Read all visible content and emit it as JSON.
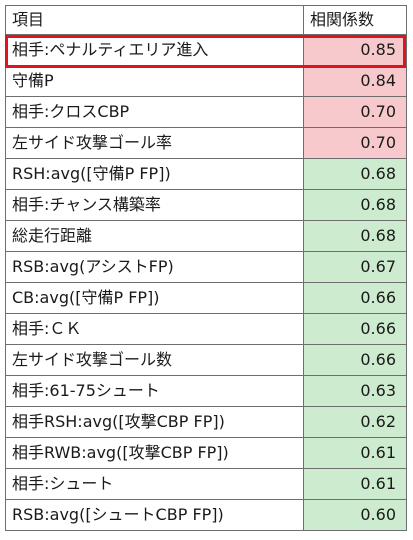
{
  "header": {
    "item": "項目",
    "value": "相関係数"
  },
  "rows": [
    {
      "item": "相手:ペナルティエリア進入",
      "value": "0.85",
      "level": "high"
    },
    {
      "item": "守備P",
      "value": "0.84",
      "level": "high"
    },
    {
      "item": "相手:クロスCBP",
      "value": "0.70",
      "level": "high"
    },
    {
      "item": "左サイド攻撃ゴール率",
      "value": "0.70",
      "level": "high"
    },
    {
      "item": "RSH:avg([守備P FP])",
      "value": "0.68",
      "level": "mid"
    },
    {
      "item": "相手:チャンス構築率",
      "value": "0.68",
      "level": "mid"
    },
    {
      "item": "総走行距離",
      "value": "0.68",
      "level": "mid"
    },
    {
      "item": "RSB:avg(アシストFP)",
      "value": "0.67",
      "level": "mid"
    },
    {
      "item": "CB:avg([守備P FP])",
      "value": "0.66",
      "level": "mid"
    },
    {
      "item": "相手:ＣＫ",
      "value": "0.66",
      "level": "mid"
    },
    {
      "item": "左サイド攻撃ゴール数",
      "value": "0.66",
      "level": "mid"
    },
    {
      "item": "相手:61-75シュート",
      "value": "0.63",
      "level": "mid"
    },
    {
      "item": "相手RSH:avg([攻撃CBP FP])",
      "value": "0.62",
      "level": "mid"
    },
    {
      "item": "相手RWB:avg([攻撃CBP FP])",
      "value": "0.61",
      "level": "mid"
    },
    {
      "item": "相手:シュート",
      "value": "0.61",
      "level": "mid"
    },
    {
      "item": "RSB:avg([シュートCBP FP])",
      "value": "0.60",
      "level": "mid"
    }
  ],
  "colors": {
    "high": "#f7c9cd",
    "mid": "#cdeccf",
    "highlight_border": "#e0141e"
  }
}
